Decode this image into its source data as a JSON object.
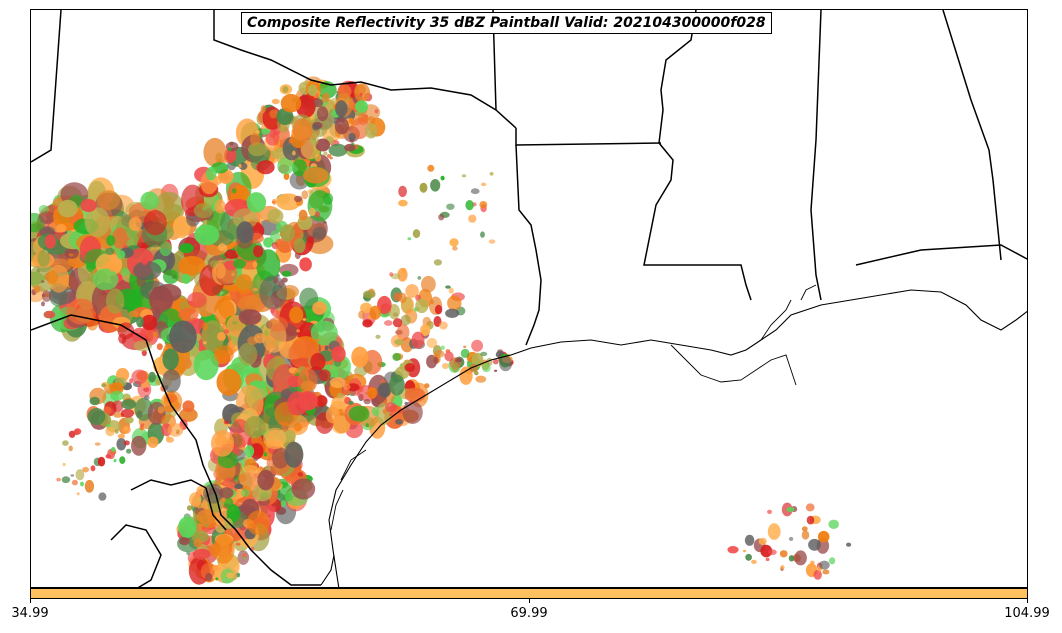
{
  "title": "Composite Reflectivity 35 dBZ Paintball Valid: 202104300000f028",
  "colorbar": {
    "color": "#ffc060",
    "ticks": [
      "34.99",
      "69.99",
      "104.99"
    ]
  },
  "colors": {
    "member_colors": [
      "#e8832a",
      "#f07e10",
      "#ff9f40",
      "#ffb050",
      "#d81e1e",
      "#f04848",
      "#9a4a4a",
      "#4a8a4a",
      "#5ad65a",
      "#22b022",
      "#a0a040",
      "#b8b050",
      "#606060",
      "#f06a30"
    ],
    "land_border": "#000000"
  },
  "map_features": [
    "state-borders",
    "coastline",
    "mexico-border",
    "gulf-of-mexico"
  ]
}
